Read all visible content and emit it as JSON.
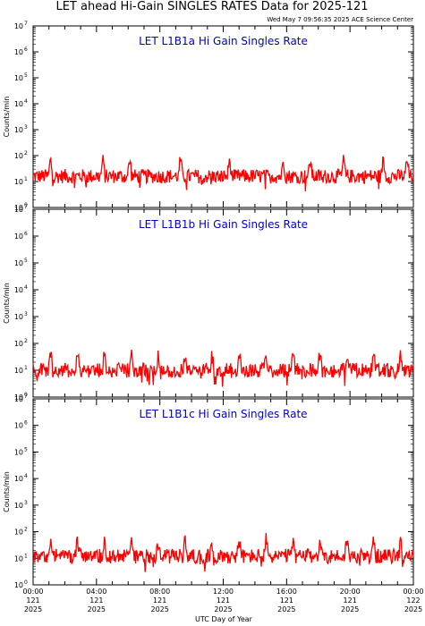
{
  "header": {
    "title": "LET ahead Hi-Gain SINGLES RATES Data for 2025-121",
    "timestamp": "Wed May  7 09:56:35 2025 ACE Science Center"
  },
  "colors": {
    "series": "#ff0000",
    "panel_title": "#0000cc",
    "axes": "#000000"
  },
  "chart_data": [
    {
      "type": "line",
      "title": "LET L1B1a Hi Gain Singles Rate",
      "ylabel": "Counts/min",
      "yscale": "log",
      "ylim": [
        1,
        10000000
      ],
      "y_ticks": [
        "10",
        "10",
        "10",
        "10",
        "10",
        "10",
        "10",
        "10"
      ],
      "y_tick_exponents": [
        "0",
        "1",
        "2",
        "3",
        "4",
        "5",
        "6",
        "7"
      ],
      "xlim_hours": [
        0,
        24
      ],
      "series": [
        {
          "baseline": 16,
          "spike_hours": [
            1.1,
            4.4,
            6.1,
            9.3,
            12.4,
            15.8,
            17.5,
            19.6,
            22.1,
            23.6
          ]
        }
      ]
    },
    {
      "type": "line",
      "title": "LET L1B1b Hi Gain Singles Rate",
      "ylabel": "Counts/min",
      "yscale": "log",
      "ylim": [
        1,
        10000000
      ],
      "y_ticks": [
        "10",
        "10",
        "10",
        "10",
        "10",
        "10",
        "10",
        "10"
      ],
      "y_tick_exponents": [
        "0",
        "1",
        "2",
        "3",
        "4",
        "5",
        "6",
        "7"
      ],
      "xlim_hours": [
        0,
        24
      ],
      "series": [
        {
          "baseline": 10,
          "spike_hours": [
            1.1,
            2.8,
            4.5,
            6.2,
            7.9,
            9.6,
            11.3,
            13.0,
            14.7,
            16.4,
            18.1,
            19.8,
            21.5,
            23.2
          ]
        }
      ]
    },
    {
      "type": "line",
      "title": "LET L1B1c Hi Gain Singles Rate",
      "ylabel": "Counts/min",
      "yscale": "log",
      "ylim": [
        1,
        10000000
      ],
      "y_ticks": [
        "10",
        "10",
        "10",
        "10",
        "10",
        "10",
        "10",
        "10"
      ],
      "y_tick_exponents": [
        "0",
        "1",
        "2",
        "3",
        "4",
        "5",
        "6",
        "7"
      ],
      "xlim_hours": [
        0,
        24
      ],
      "series": [
        {
          "baseline": 12,
          "spike_hours": [
            1.1,
            2.8,
            4.5,
            6.2,
            7.9,
            9.6,
            11.3,
            13.0,
            14.7,
            16.4,
            18.1,
            19.8,
            21.5,
            23.2
          ]
        }
      ]
    }
  ],
  "x_axis": {
    "label": "UTC Day of Year",
    "ticks": [
      {
        "time": "00:00",
        "doy": "121",
        "year": "2025"
      },
      {
        "time": "04:00",
        "doy": "121",
        "year": "2025"
      },
      {
        "time": "08:00",
        "doy": "121",
        "year": "2025"
      },
      {
        "time": "12:00",
        "doy": "121",
        "year": "2025"
      },
      {
        "time": "16:00",
        "doy": "121",
        "year": "2025"
      },
      {
        "time": "20:00",
        "doy": "121",
        "year": "2025"
      },
      {
        "time": "00:00",
        "doy": "122",
        "year": "2025"
      }
    ]
  }
}
